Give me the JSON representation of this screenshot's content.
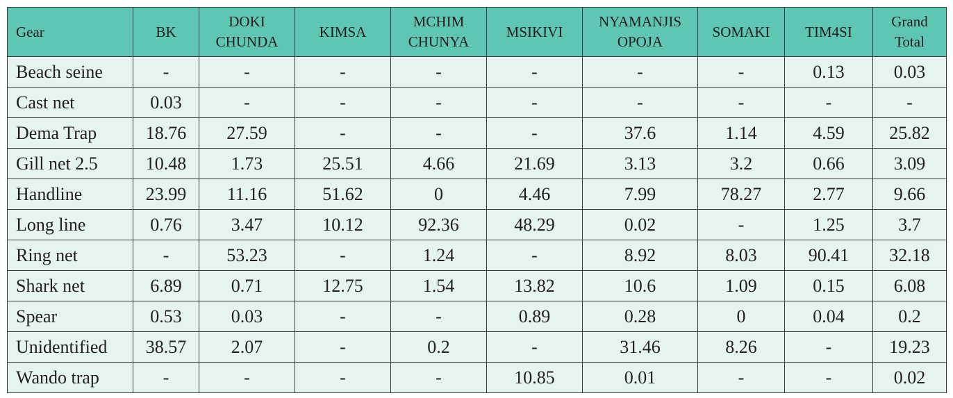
{
  "table": {
    "headers": [
      "Gear",
      "BK",
      "DOKI CHUNDA",
      "KIMSA",
      "MCHIM CHUNYA",
      "MSIKIVI",
      "NYAMANJIS OPOJA",
      "SOMAKI",
      "TIM4SI",
      "Grand Total"
    ],
    "rows": [
      [
        "Beach seine",
        "-",
        "-",
        "-",
        "-",
        "-",
        "-",
        "-",
        "0.13",
        "0.03"
      ],
      [
        "Cast net",
        "0.03",
        "-",
        "-",
        "-",
        "-",
        "-",
        "-",
        "-",
        "-"
      ],
      [
        "Dema Trap",
        "18.76",
        "27.59",
        "-",
        "-",
        "-",
        "37.6",
        "1.14",
        "4.59",
        "25.82"
      ],
      [
        "Gill net 2.5",
        "10.48",
        "1.73",
        "25.51",
        "4.66",
        "21.69",
        "3.13",
        "3.2",
        "0.66",
        "3.09"
      ],
      [
        "Handline",
        "23.99",
        "11.16",
        "51.62",
        "0",
        "4.46",
        "7.99",
        "78.27",
        "2.77",
        "9.66"
      ],
      [
        "Long line",
        "0.76",
        "3.47",
        "10.12",
        "92.36",
        "48.29",
        "0.02",
        "-",
        "1.25",
        "3.7"
      ],
      [
        "Ring net",
        "-",
        "53.23",
        "-",
        "1.24",
        "-",
        "8.92",
        "8.03",
        "90.41",
        "32.18"
      ],
      [
        "Shark net",
        "6.89",
        "0.71",
        "12.75",
        "1.54",
        "13.82",
        "10.6",
        "1.09",
        "0.15",
        "6.08"
      ],
      [
        "Spear",
        "0.53",
        "0.03",
        "-",
        "-",
        "0.89",
        "0.28",
        "0",
        "0.04",
        "0.2"
      ],
      [
        "Unidentified",
        "38.57",
        "2.07",
        "-",
        "0.2",
        "-",
        "31.46",
        "8.26",
        "-",
        "19.23"
      ],
      [
        "Wando trap",
        "-",
        "-",
        "-",
        "-",
        "10.85",
        "0.01",
        "-",
        "-",
        "0.02"
      ]
    ]
  },
  "colors": {
    "header_bg": "#5ec6b3",
    "body_bg": "#e6f4f1",
    "border": "#3a3a3a"
  }
}
